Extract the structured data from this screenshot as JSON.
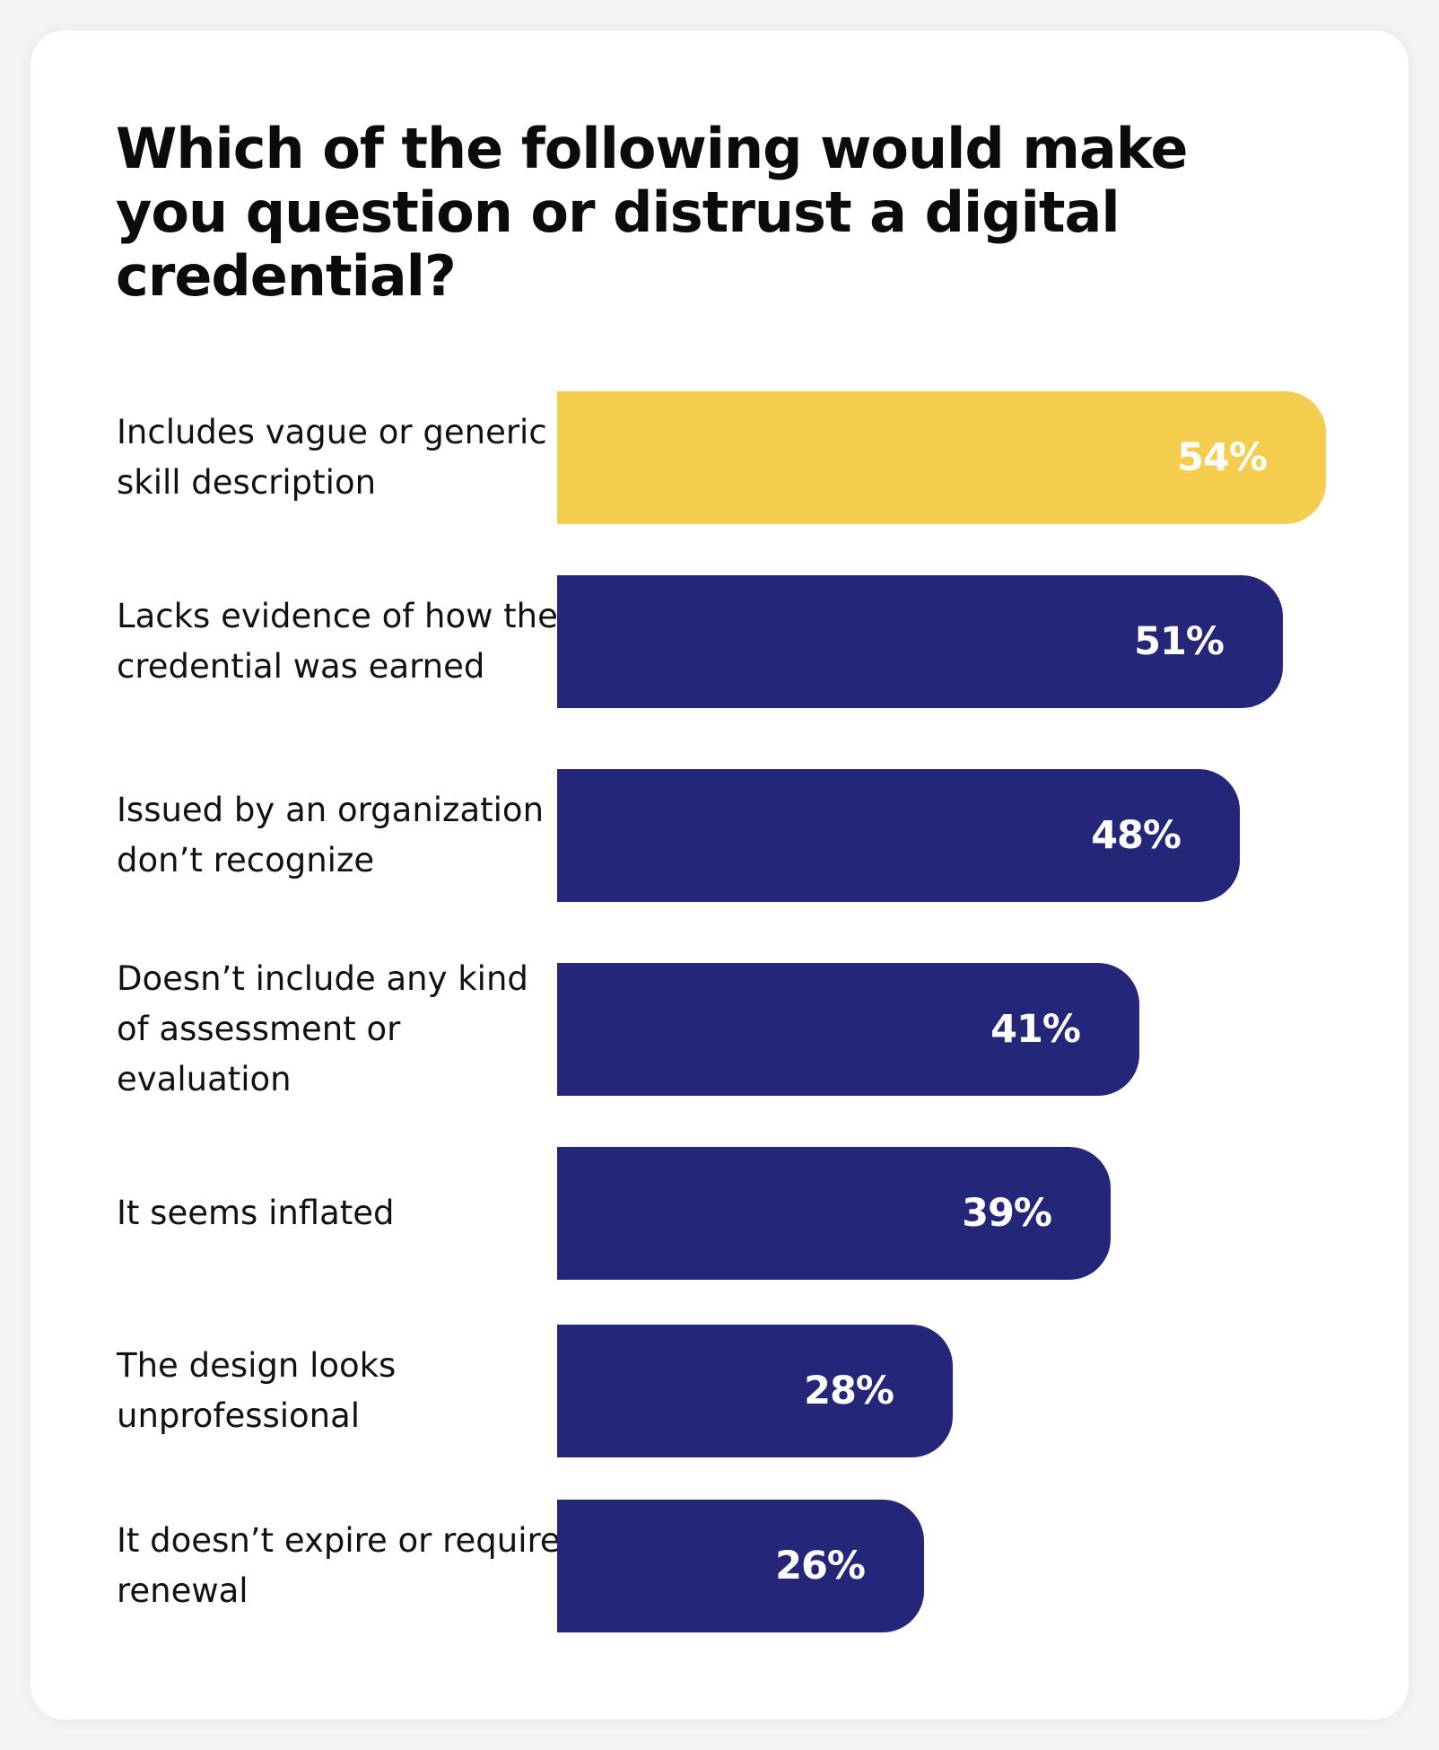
{
  "chart_data": {
    "type": "bar",
    "orientation": "horizontal",
    "title": "Which of the following would make you question or distrust a digital credential?",
    "categories": [
      "Includes vague or generic skill description",
      "Lacks evidence of how the credential was earned",
      "Issued by an organization I don’t recognize",
      "Doesn’t include any kind of assessment or evaluation",
      "It seems inflated",
      "The design looks unprofessional",
      "It doesn’t expire or require renewal"
    ],
    "values": [
      54,
      51,
      48,
      41,
      39,
      28,
      26
    ],
    "value_labels": [
      "54%",
      "51%",
      "48%",
      "41%",
      "39%",
      "28%",
      "26%"
    ],
    "unit": "%",
    "highlight_index": 0,
    "colors": {
      "highlight": "#f5cd4e",
      "default": "#24267a",
      "value_text": "#ffffff"
    },
    "xlabel": "",
    "ylabel": "",
    "grid": false,
    "legend": "none"
  }
}
